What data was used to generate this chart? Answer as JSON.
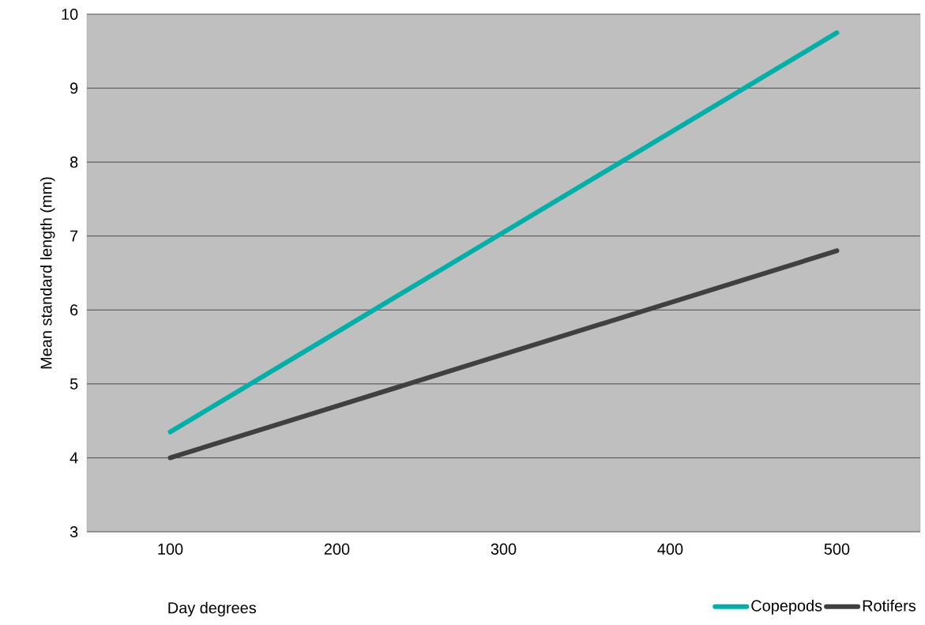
{
  "chart_data": {
    "type": "line",
    "xlabel": "Day degrees",
    "ylabel": "Mean standard length (mm)",
    "x": [
      100,
      200,
      300,
      400,
      500
    ],
    "series": [
      {
        "name": "Copepods",
        "color": "#00b0a8",
        "values": [
          4.35,
          5.7,
          7.05,
          8.4,
          9.75
        ]
      },
      {
        "name": "Rotifers",
        "color": "#404040",
        "values": [
          4.0,
          4.7,
          5.4,
          6.1,
          6.8
        ]
      }
    ],
    "xlim": [
      50,
      550
    ],
    "xticks": [
      100,
      200,
      300,
      400,
      500
    ],
    "ylim": [
      3,
      10
    ],
    "yticks": [
      3,
      4,
      5,
      6,
      7,
      8,
      9,
      10
    ],
    "grid": "y",
    "legend": "bottom right",
    "marker": "none",
    "line_style": "solid"
  }
}
